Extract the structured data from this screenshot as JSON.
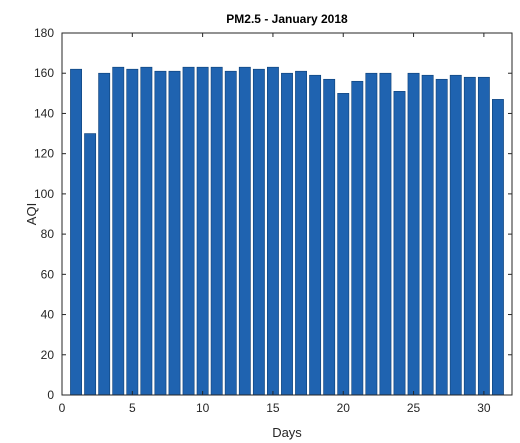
{
  "chart_data": {
    "type": "bar",
    "title": "PM2.5 - January 2018",
    "xlabel": "Days",
    "ylabel": "AQI",
    "x": [
      1,
      2,
      3,
      4,
      5,
      6,
      7,
      8,
      9,
      10,
      11,
      12,
      13,
      14,
      15,
      16,
      17,
      18,
      19,
      20,
      21,
      22,
      23,
      24,
      25,
      26,
      27,
      28,
      29,
      30,
      31
    ],
    "values": [
      162,
      130,
      160,
      163,
      162,
      163,
      161,
      161,
      163,
      163,
      163,
      161,
      163,
      162,
      163,
      160,
      161,
      159,
      157,
      150,
      156,
      160,
      160,
      151,
      160,
      159,
      157,
      159,
      158,
      158,
      147
    ],
    "xlim": [
      0,
      32
    ],
    "ylim": [
      0,
      180
    ],
    "xticks": [
      0,
      5,
      10,
      15,
      20,
      25,
      30
    ],
    "yticks": [
      0,
      20,
      40,
      60,
      80,
      100,
      120,
      140,
      160,
      180
    ],
    "bar_color": "#1f63b0",
    "grid": false,
    "legend": "none"
  }
}
